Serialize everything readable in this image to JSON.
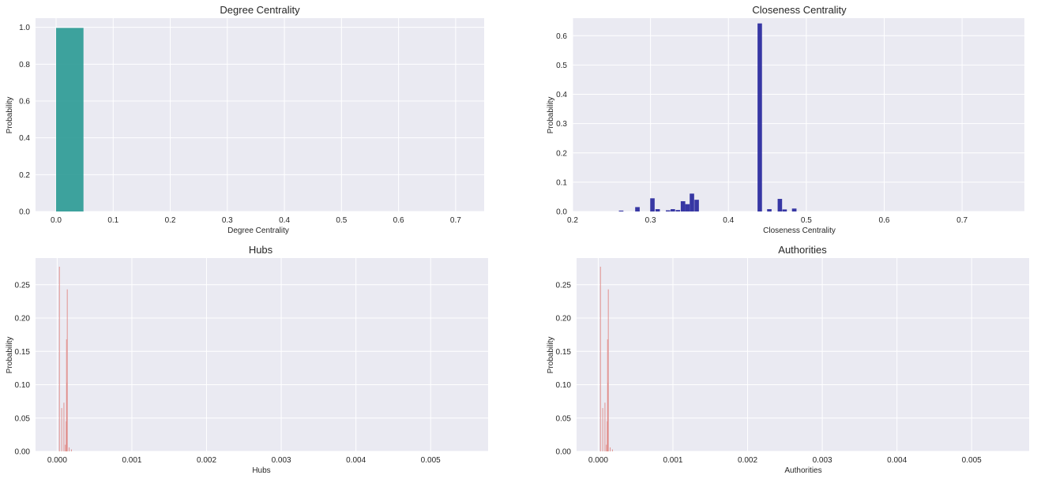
{
  "chart_data": [
    {
      "type": "bar",
      "title": "Degree Centrality",
      "xlabel": "Degree Centrality",
      "ylabel": "Probability",
      "xlim": [
        -0.036,
        0.75
      ],
      "ylim": [
        0,
        1.05
      ],
      "xticks": [
        0.0,
        0.1,
        0.2,
        0.3,
        0.4,
        0.5,
        0.6,
        0.7
      ],
      "xtick_labels": [
        "0.0",
        "0.1",
        "0.2",
        "0.3",
        "0.4",
        "0.5",
        "0.6",
        "0.7"
      ],
      "yticks": [
        0.0,
        0.2,
        0.4,
        0.6,
        0.8,
        1.0
      ],
      "ytick_labels": [
        "0.0",
        "0.2",
        "0.4",
        "0.6",
        "0.8",
        "1.0"
      ],
      "grid": true,
      "color": "#2a9a94",
      "bins": [
        {
          "x0": 0.0,
          "x1": 0.048,
          "value": 0.997
        }
      ]
    },
    {
      "type": "bar",
      "title": "Closeness Centrality",
      "xlabel": "Closeness Centrality",
      "ylabel": "Probability",
      "xlim": [
        0.2,
        0.78
      ],
      "ylim": [
        0,
        0.66
      ],
      "xticks": [
        0.2,
        0.3,
        0.4,
        0.5,
        0.6,
        0.7
      ],
      "xtick_labels": [
        "0.2",
        "0.3",
        "0.4",
        "0.5",
        "0.6",
        "0.7"
      ],
      "yticks": [
        0.0,
        0.1,
        0.2,
        0.3,
        0.4,
        0.5,
        0.6
      ],
      "ytick_labels": [
        "0.0",
        "0.1",
        "0.2",
        "0.3",
        "0.4",
        "0.5",
        "0.6"
      ],
      "grid": true,
      "color": "#23239b",
      "bins": [
        {
          "x0": 0.2594,
          "x1": 0.2652,
          "value": 0.003
        },
        {
          "x0": 0.2803,
          "x1": 0.2861,
          "value": 0.015
        },
        {
          "x0": 0.2996,
          "x1": 0.3053,
          "value": 0.045
        },
        {
          "x0": 0.3063,
          "x1": 0.312,
          "value": 0.008
        },
        {
          "x0": 0.3197,
          "x1": 0.3254,
          "value": 0.004
        },
        {
          "x0": 0.3258,
          "x1": 0.3315,
          "value": 0.008
        },
        {
          "x0": 0.3323,
          "x1": 0.338,
          "value": 0.005
        },
        {
          "x0": 0.3388,
          "x1": 0.3446,
          "value": 0.035
        },
        {
          "x0": 0.3446,
          "x1": 0.3503,
          "value": 0.025
        },
        {
          "x0": 0.3503,
          "x1": 0.356,
          "value": 0.061
        },
        {
          "x0": 0.3564,
          "x1": 0.3621,
          "value": 0.04
        },
        {
          "x0": 0.4374,
          "x1": 0.4431,
          "value": 0.642
        },
        {
          "x0": 0.4497,
          "x1": 0.4554,
          "value": 0.008
        },
        {
          "x0": 0.4632,
          "x1": 0.4689,
          "value": 0.043
        },
        {
          "x0": 0.4693,
          "x1": 0.475,
          "value": 0.007
        },
        {
          "x0": 0.4816,
          "x1": 0.4874,
          "value": 0.01
        }
      ]
    },
    {
      "type": "bar",
      "title": "Hubs",
      "xlabel": "Hubs",
      "ylabel": "Probability",
      "xlim": [
        -0.00029,
        0.00577
      ],
      "ylim": [
        0,
        0.29
      ],
      "xticks": [
        0.0,
        0.001,
        0.002,
        0.003,
        0.004,
        0.005
      ],
      "xtick_labels": [
        "0.000",
        "0.001",
        "0.002",
        "0.003",
        "0.004",
        "0.005"
      ],
      "yticks": [
        0.0,
        0.05,
        0.1,
        0.15,
        0.2,
        0.25
      ],
      "ytick_labels": [
        "0.00",
        "0.05",
        "0.10",
        "0.15",
        "0.20",
        "0.25"
      ],
      "grid": true,
      "color": "#e08a86",
      "bins": [
        {
          "x": 3e-05,
          "value": 0.277
        },
        {
          "x": 6e-05,
          "value": 0.065
        },
        {
          "x": 9e-05,
          "value": 0.073
        },
        {
          "x": 0.00011,
          "value": 0.01
        },
        {
          "x": 0.00012,
          "value": 0.045
        },
        {
          "x": 0.000125,
          "value": 0.168
        },
        {
          "x": 0.00013,
          "value": 0.103
        },
        {
          "x": 0.000135,
          "value": 0.243
        },
        {
          "x": 0.00016,
          "value": 0.006
        },
        {
          "x": 0.00019,
          "value": 0.003
        }
      ]
    },
    {
      "type": "bar",
      "title": "Authorities",
      "xlabel": "Authorities",
      "ylabel": "Probability",
      "xlim": [
        -0.00029,
        0.00577
      ],
      "ylim": [
        0,
        0.29
      ],
      "xticks": [
        0.0,
        0.001,
        0.002,
        0.003,
        0.004,
        0.005
      ],
      "xtick_labels": [
        "0.000",
        "0.001",
        "0.002",
        "0.003",
        "0.004",
        "0.005"
      ],
      "yticks": [
        0.0,
        0.05,
        0.1,
        0.15,
        0.2,
        0.25
      ],
      "ytick_labels": [
        "0.00",
        "0.05",
        "0.10",
        "0.15",
        "0.20",
        "0.25"
      ],
      "grid": true,
      "color": "#e08a86",
      "bins": [
        {
          "x": 3e-05,
          "value": 0.277
        },
        {
          "x": 6e-05,
          "value": 0.065
        },
        {
          "x": 9e-05,
          "value": 0.073
        },
        {
          "x": 0.00011,
          "value": 0.01
        },
        {
          "x": 0.00012,
          "value": 0.045
        },
        {
          "x": 0.000125,
          "value": 0.168
        },
        {
          "x": 0.00013,
          "value": 0.103
        },
        {
          "x": 0.000135,
          "value": 0.243
        },
        {
          "x": 0.00016,
          "value": 0.006
        },
        {
          "x": 0.00019,
          "value": 0.003
        }
      ]
    }
  ],
  "style": {
    "axes_background": "#eaeaf2",
    "grid_color": "#ffffff",
    "text_color": "#262626"
  }
}
